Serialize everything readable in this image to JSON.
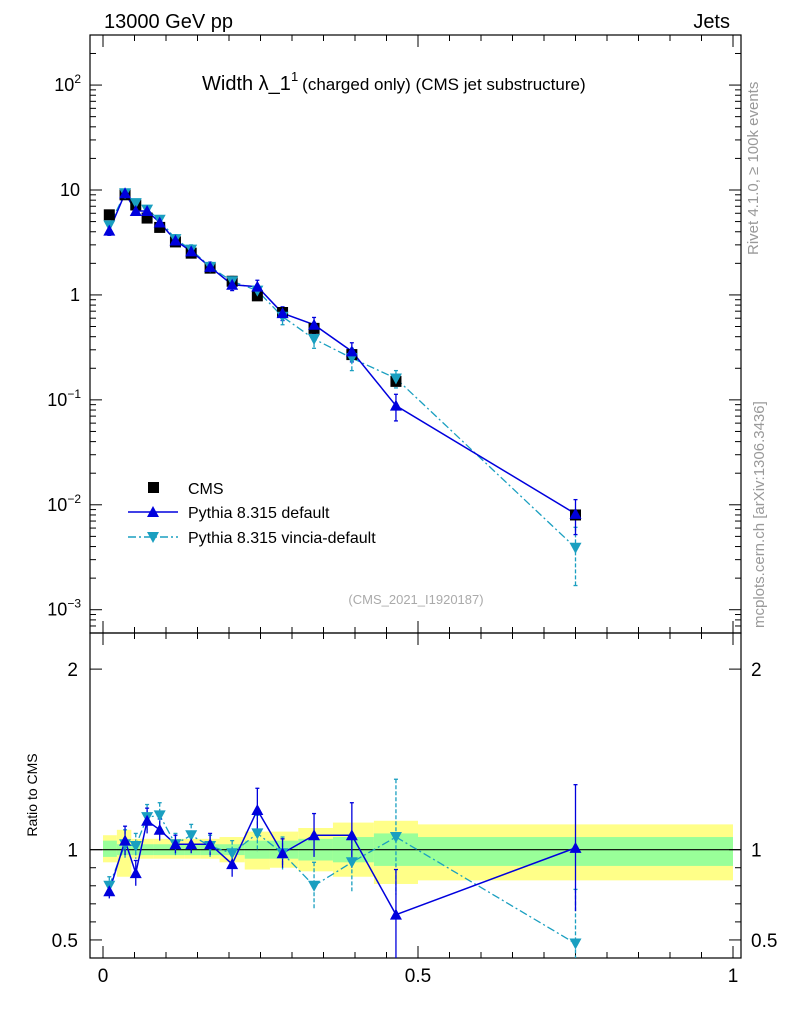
{
  "header": {
    "left": "13000 GeV pp",
    "right": "Jets"
  },
  "side": {
    "rivet": "Rivet 4.1.0, ≥ 100k events",
    "mcplots": "mcplots.cern.ch [arXiv:1306.3436]"
  },
  "colors": {
    "cms": "#000000",
    "pythia": "#0000dd",
    "vincia": "#1a9fc0",
    "band_outer": "#ffff88",
    "band_inner": "#99ff99"
  },
  "chart_data": [
    {
      "type": "line",
      "scale": "log",
      "title_main": "Width λ_1",
      "title_sup": "1",
      "title_sub": "(charged only) (CMS jet substructure)",
      "analysis_label": "(CMS_2021_I1920187)",
      "xlim": [
        0,
        1
      ],
      "ylim": [
        0.0006,
        300
      ],
      "y_ticks": [
        {
          "v": 0.001,
          "base": "10",
          "exp": "−3"
        },
        {
          "v": 0.01,
          "base": "10",
          "exp": "−2"
        },
        {
          "v": 0.1,
          "base": "10",
          "exp": "−1"
        },
        {
          "v": 1,
          "base": "1",
          "exp": ""
        },
        {
          "v": 10,
          "base": "10",
          "exp": ""
        },
        {
          "v": 100,
          "base": "10",
          "exp": "2"
        }
      ],
      "legend": [
        "CMS",
        "Pythia 8.315 default",
        "Pythia 8.315 vincia-default"
      ],
      "x": [
        0.01,
        0.035,
        0.052,
        0.07,
        0.09,
        0.115,
        0.14,
        0.17,
        0.205,
        0.245,
        0.285,
        0.335,
        0.395,
        0.465,
        0.75
      ],
      "series": [
        {
          "name": "CMS",
          "values": [
            5.8,
            9.0,
            7.2,
            5.4,
            4.4,
            3.2,
            2.5,
            1.8,
            1.35,
            0.98,
            0.68,
            0.48,
            0.27,
            0.15,
            0.008
          ]
        },
        {
          "name": "Pythia 8.315 default",
          "values": [
            4.1,
            9.3,
            6.3,
            6.3,
            4.9,
            3.3,
            2.6,
            1.85,
            1.25,
            1.2,
            0.67,
            0.52,
            0.29,
            0.088,
            0.0082
          ],
          "err_lo": [
            0.4,
            0.8,
            0.5,
            0.6,
            0.5,
            0.35,
            0.3,
            0.2,
            0.15,
            0.18,
            0.1,
            0.09,
            0.06,
            0.025,
            0.003
          ],
          "err_hi": [
            0.4,
            0.8,
            0.5,
            0.6,
            0.5,
            0.35,
            0.3,
            0.2,
            0.15,
            0.18,
            0.1,
            0.09,
            0.06,
            0.025,
            0.003
          ]
        },
        {
          "name": "Pythia 8.315 vincia-default",
          "values": [
            4.6,
            9.3,
            7.5,
            6.5,
            5.2,
            3.4,
            2.7,
            1.85,
            1.35,
            1.1,
            0.62,
            0.38,
            0.25,
            0.16,
            0.0039
          ],
          "err_lo": [
            0.4,
            0.8,
            0.6,
            0.6,
            0.5,
            0.35,
            0.3,
            0.2,
            0.15,
            0.15,
            0.1,
            0.07,
            0.06,
            0.03,
            0.0022
          ],
          "err_hi": [
            0.4,
            0.8,
            0.6,
            0.6,
            0.5,
            0.35,
            0.3,
            0.2,
            0.15,
            0.15,
            0.1,
            0.07,
            0.06,
            0.03,
            0.0022
          ]
        }
      ]
    },
    {
      "type": "line",
      "ylabel": "Ratio to CMS",
      "xlim": [
        0,
        1
      ],
      "ylim": [
        0.4,
        2.2
      ],
      "y_ticks": [
        0.5,
        1,
        2
      ],
      "x_ticks": [
        0,
        0.5,
        1
      ],
      "x_tick_labels": [
        "0",
        "0.5",
        "1"
      ],
      "y_tick_labels": [
        "0.5",
        "1",
        "2"
      ],
      "band_bins": [
        {
          "x0": 0.0,
          "x1": 0.022,
          "outer": [
            0.93,
            1.08
          ],
          "inner": [
            0.96,
            1.05
          ]
        },
        {
          "x0": 0.022,
          "x1": 0.045,
          "outer": [
            0.85,
            1.11
          ],
          "inner": [
            0.97,
            1.03
          ]
        },
        {
          "x0": 0.045,
          "x1": 0.06,
          "outer": [
            0.95,
            1.06
          ],
          "inner": [
            0.97,
            1.03
          ]
        },
        {
          "x0": 0.06,
          "x1": 0.08,
          "outer": [
            0.95,
            1.06
          ],
          "inner": [
            0.97,
            1.03
          ]
        },
        {
          "x0": 0.08,
          "x1": 0.1,
          "outer": [
            0.95,
            1.06
          ],
          "inner": [
            0.97,
            1.03
          ]
        },
        {
          "x0": 0.1,
          "x1": 0.13,
          "outer": [
            0.95,
            1.06
          ],
          "inner": [
            0.97,
            1.03
          ]
        },
        {
          "x0": 0.13,
          "x1": 0.155,
          "outer": [
            0.95,
            1.06
          ],
          "inner": [
            0.97,
            1.03
          ]
        },
        {
          "x0": 0.155,
          "x1": 0.185,
          "outer": [
            0.95,
            1.06
          ],
          "inner": [
            0.97,
            1.03
          ]
        },
        {
          "x0": 0.185,
          "x1": 0.225,
          "outer": [
            0.93,
            1.07
          ],
          "inner": [
            0.97,
            1.03
          ]
        },
        {
          "x0": 0.225,
          "x1": 0.265,
          "outer": [
            0.89,
            1.1
          ],
          "inner": [
            0.95,
            1.05
          ]
        },
        {
          "x0": 0.265,
          "x1": 0.31,
          "outer": [
            0.9,
            1.1
          ],
          "inner": [
            0.95,
            1.05
          ]
        },
        {
          "x0": 0.31,
          "x1": 0.365,
          "outer": [
            0.88,
            1.12
          ],
          "inner": [
            0.94,
            1.06
          ]
        },
        {
          "x0": 0.365,
          "x1": 0.43,
          "outer": [
            0.85,
            1.15
          ],
          "inner": [
            0.93,
            1.07
          ]
        },
        {
          "x0": 0.43,
          "x1": 0.5,
          "outer": [
            0.81,
            1.16
          ],
          "inner": [
            0.91,
            1.09
          ]
        },
        {
          "x0": 0.5,
          "x1": 1.0,
          "outer": [
            0.83,
            1.14
          ],
          "inner": [
            0.91,
            1.07
          ]
        }
      ],
      "series": [
        {
          "name": "Pythia 8.315 default",
          "values": [
            0.77,
            1.05,
            0.87,
            1.16,
            1.11,
            1.03,
            1.03,
            1.03,
            0.92,
            1.22,
            0.98,
            1.08,
            1.08,
            0.64,
            1.01
          ],
          "err": [
            0.04,
            0.08,
            0.07,
            0.07,
            0.06,
            0.05,
            0.05,
            0.06,
            0.07,
            0.12,
            0.08,
            0.12,
            0.18,
            0.25,
            0.35
          ]
        },
        {
          "name": "Pythia 8.315 vincia-default",
          "values": [
            0.8,
            1.03,
            1.02,
            1.18,
            1.19,
            1.03,
            1.08,
            1.02,
            0.98,
            1.09,
            0.98,
            0.8,
            0.93,
            1.07,
            0.48
          ],
          "err": [
            0.05,
            0.08,
            0.07,
            0.07,
            0.07,
            0.06,
            0.06,
            0.06,
            0.07,
            0.1,
            0.09,
            0.13,
            0.16,
            0.32,
            0.3
          ]
        }
      ]
    }
  ]
}
